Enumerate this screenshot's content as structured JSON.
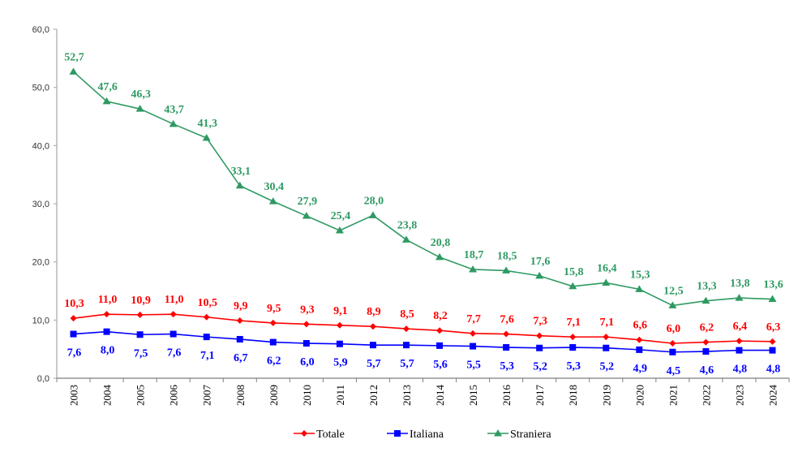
{
  "chart_data": {
    "type": "line",
    "title": "",
    "xlabel": "",
    "ylabel": "",
    "ylim": [
      0,
      60
    ],
    "yticks": [
      "0,0",
      "10,0",
      "20,0",
      "30,0",
      "40,0",
      "50,0",
      "60,0"
    ],
    "grid": false,
    "legend_position": "bottom",
    "categories": [
      "2003",
      "2004",
      "2005",
      "2006",
      "2007",
      "2008",
      "2009",
      "2010",
      "2011",
      "2012",
      "2013",
      "2014",
      "2015",
      "2016",
      "2017",
      "2018",
      "2019",
      "2020",
      "2021",
      "2022",
      "2023",
      "2024"
    ],
    "series": [
      {
        "name": "Totale",
        "color": "#ff0000",
        "marker": "diamond",
        "label_position": "above",
        "values": [
          10.3,
          11.0,
          10.9,
          11.0,
          10.5,
          9.9,
          9.5,
          9.3,
          9.1,
          8.9,
          8.5,
          8.2,
          7.7,
          7.6,
          7.3,
          7.1,
          7.1,
          6.6,
          6.0,
          6.2,
          6.4,
          6.3
        ],
        "labels": [
          "10,3",
          "11,0",
          "10,9",
          "11,0",
          "10,5",
          "9,9",
          "9,5",
          "9,3",
          "9,1",
          "8,9",
          "8,5",
          "8,2",
          "7,7",
          "7,6",
          "7,3",
          "7,1",
          "7,1",
          "6,6",
          "6,0",
          "6,2",
          "6,4",
          "6,3"
        ]
      },
      {
        "name": "Italiana",
        "color": "#0000ff",
        "marker": "square",
        "label_position": "below",
        "values": [
          7.6,
          8.0,
          7.5,
          7.6,
          7.1,
          6.7,
          6.2,
          6.0,
          5.9,
          5.7,
          5.7,
          5.6,
          5.5,
          5.3,
          5.2,
          5.3,
          5.2,
          4.9,
          4.5,
          4.6,
          4.8,
          4.8
        ],
        "labels": [
          "7,6",
          "8,0",
          "7,5",
          "7,6",
          "7,1",
          "6,7",
          "6,2",
          "6,0",
          "5,9",
          "5,7",
          "5,7",
          "5,6",
          "5,5",
          "5,3",
          "5,2",
          "5,3",
          "5,2",
          "4,9",
          "4,5",
          "4,6",
          "4,8",
          "4,8"
        ]
      },
      {
        "name": "Straniera",
        "color": "#2e9a62",
        "marker": "triangle",
        "label_position": "above",
        "values": [
          52.7,
          47.6,
          46.3,
          43.7,
          41.3,
          33.1,
          30.4,
          27.9,
          25.4,
          28.0,
          23.8,
          20.8,
          18.7,
          18.5,
          17.6,
          15.8,
          16.4,
          15.3,
          12.5,
          13.3,
          13.8,
          13.6
        ],
        "labels": [
          "52,7",
          "47,6",
          "46,3",
          "43,7",
          "41,3",
          "33,1",
          "30,4",
          "27,9",
          "25,4",
          "28,0",
          "23,8",
          "20,8",
          "18,7",
          "18,5",
          "17,6",
          "15,8",
          "16,4",
          "15,3",
          "12,5",
          "13,3",
          "13,8",
          "13,6"
        ]
      }
    ]
  },
  "legend": {
    "items": [
      {
        "label": "Totale",
        "color": "#ff0000",
        "marker": "diamond-icon"
      },
      {
        "label": "Italiana",
        "color": "#0000ff",
        "marker": "square-icon"
      },
      {
        "label": "Straniera",
        "color": "#2e9a62",
        "marker": "triangle-icon"
      }
    ]
  },
  "style": {
    "axis_color": "#a6a6a6",
    "tick_text_color": "#333333"
  }
}
